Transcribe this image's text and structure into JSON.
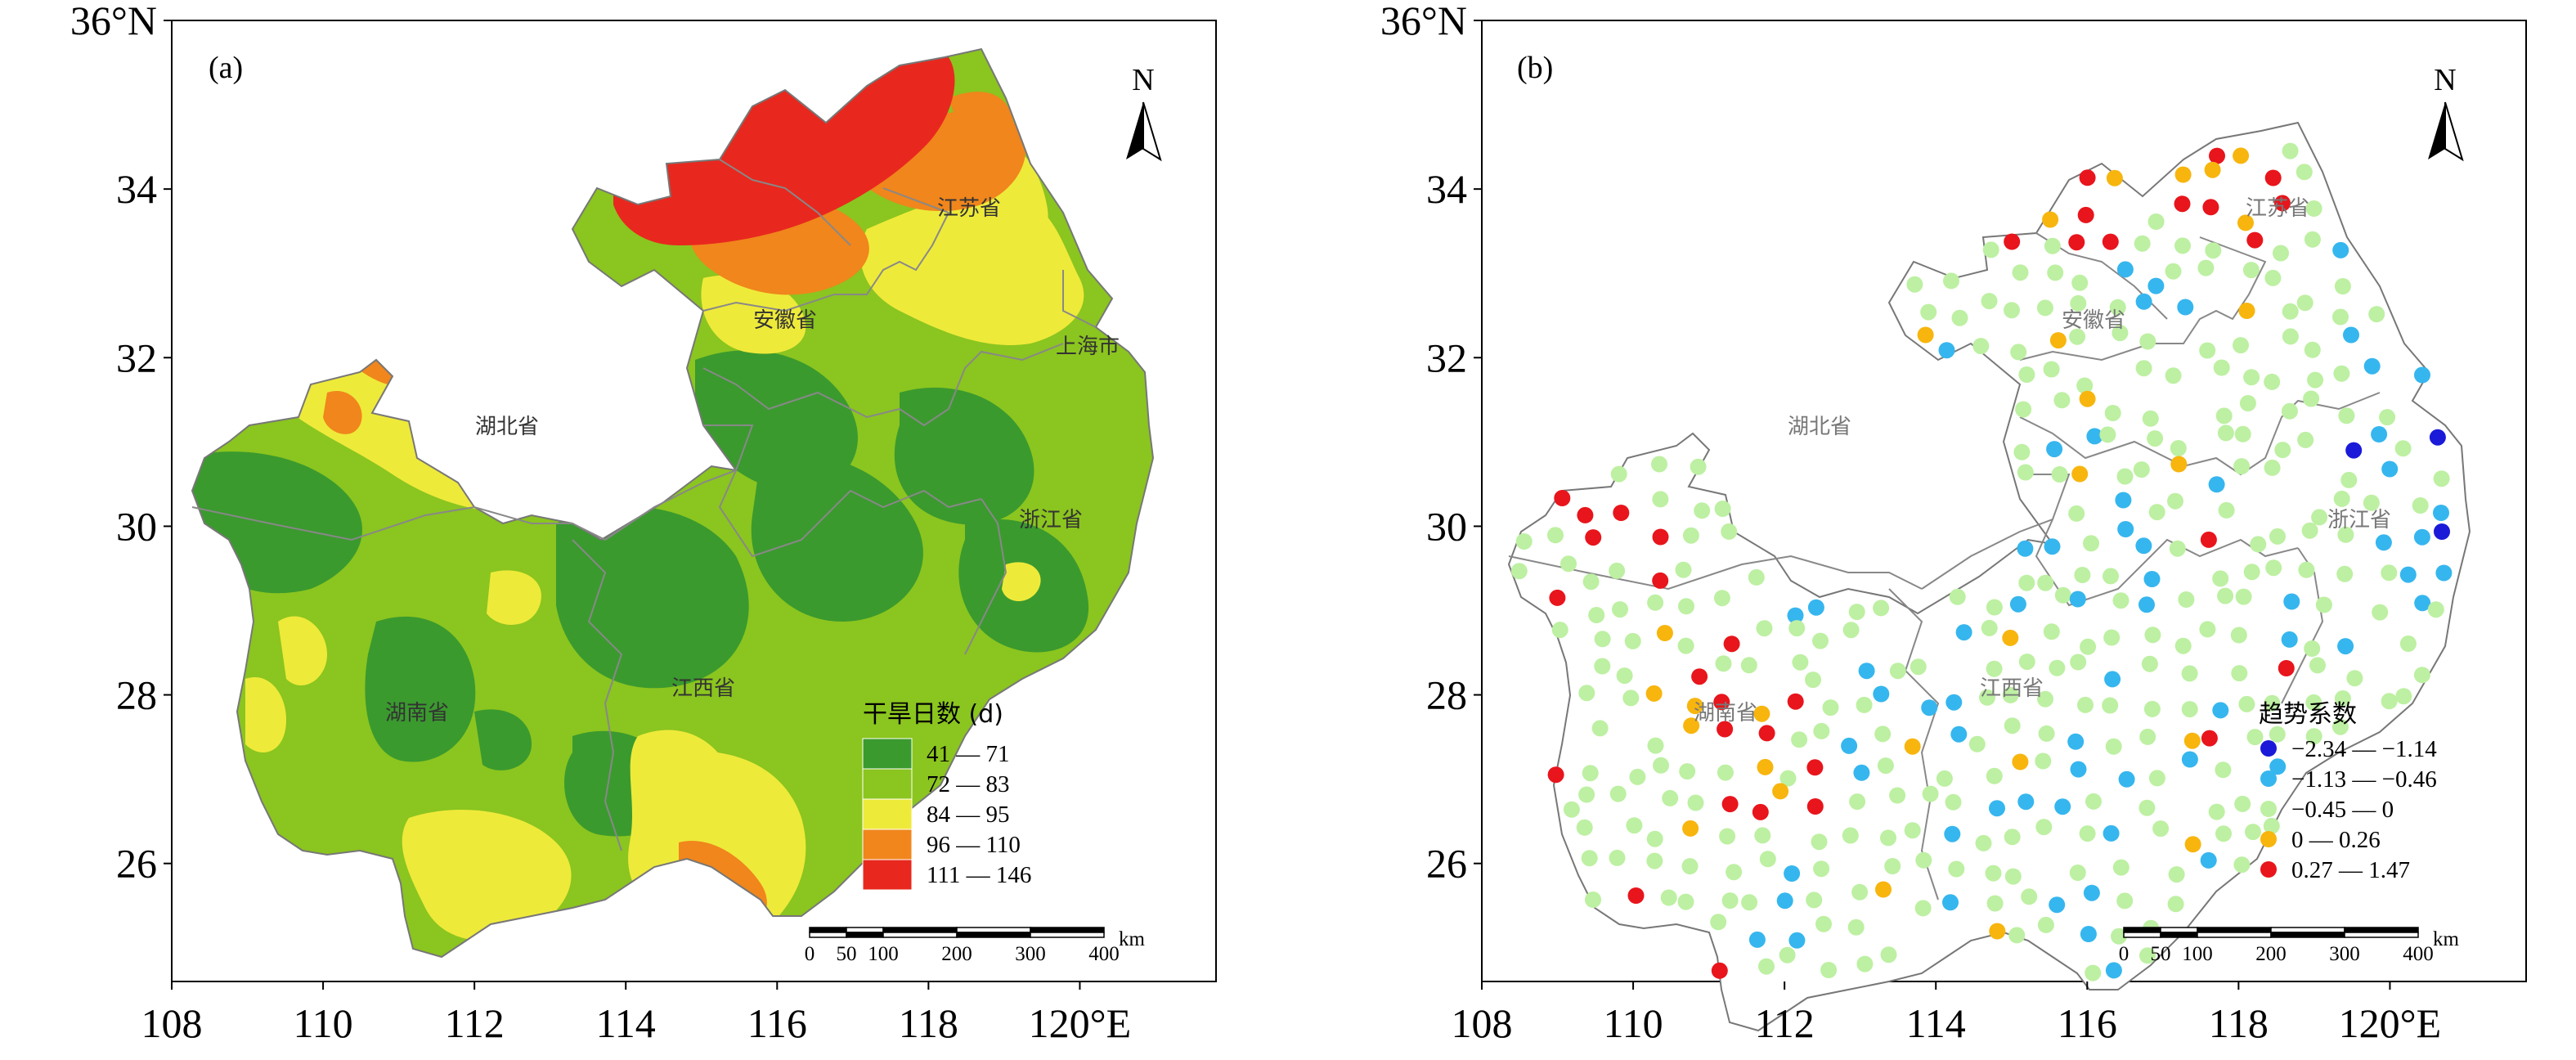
{
  "chart_data": [
    {
      "type": "map",
      "panel": "(a)",
      "title": "干旱日数 (d)",
      "x_ticks": [
        "108",
        "110",
        "112",
        "114",
        "116",
        "118",
        "120°E"
      ],
      "y_ticks": [
        "36°N",
        "34",
        "32",
        "30",
        "28",
        "26"
      ],
      "xlim": [
        108,
        121.8
      ],
      "ylim": [
        24.6,
        36
      ],
      "provinces": [
        "江苏省",
        "安徽省",
        "上海市",
        "湖北省",
        "浙江省",
        "湖南省",
        "江西省"
      ],
      "legend": [
        {
          "label": "41 — 71",
          "color": "#3a9a2e"
        },
        {
          "label": "72 — 83",
          "color": "#8bc51f"
        },
        {
          "label": "84 — 95",
          "color": "#eeea3a"
        },
        {
          "label": "96 — 110",
          "color": "#f0861c"
        },
        {
          "label": "111 — 146",
          "color": "#e8281e"
        }
      ],
      "scale_bar": {
        "labels": [
          "0",
          "50",
          "100",
          "200",
          "300",
          "400"
        ],
        "unit": "km"
      },
      "north": "N"
    },
    {
      "type": "map",
      "panel": "(b)",
      "title": "趋势系数",
      "x_ticks": [
        "108",
        "110",
        "112",
        "114",
        "116",
        "118",
        "120°E"
      ],
      "y_ticks": [
        "36°N",
        "34",
        "32",
        "30",
        "28",
        "26"
      ],
      "xlim": [
        108,
        121.8
      ],
      "ylim": [
        24.6,
        36
      ],
      "provinces": [
        "江苏省",
        "安徽省",
        "湖北省",
        "浙江省",
        "湖南省",
        "江西省"
      ],
      "legend": [
        {
          "label": "−2.34 — −1.14",
          "color": "#1a1ad8"
        },
        {
          "label": "−1.13 — −0.46",
          "color": "#36b6ee"
        },
        {
          "label": "−0.45 — 0",
          "color": "#bdf0a2"
        },
        {
          "label": "0 — 0.26",
          "color": "#f7b50e"
        },
        {
          "label": "0.27 — 1.47",
          "color": "#e8151c"
        }
      ],
      "scale_bar": {
        "labels": [
          "0",
          "50",
          "100",
          "200",
          "300",
          "400"
        ],
        "unit": "km"
      },
      "north": "N"
    }
  ]
}
